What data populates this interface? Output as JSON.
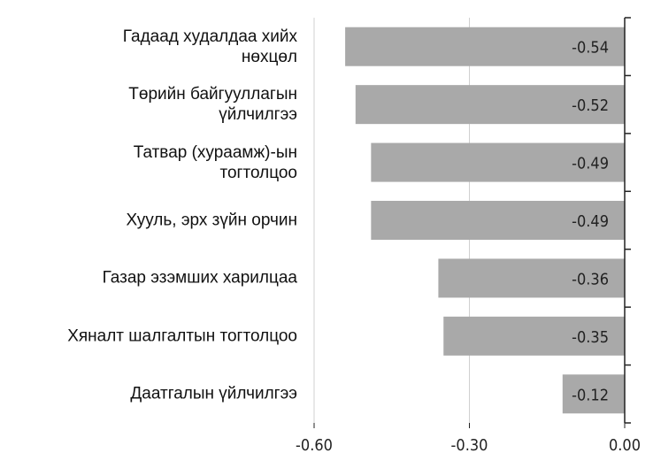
{
  "chart_data": {
    "type": "barh",
    "categories": [
      "Гадаад худалдаа хийх\nнөхцөл",
      "Төрийн байгууллагын\nүйлчилгээ",
      "Татвар (хураамж)-ын\nтогтолцоо",
      "Хууль, эрх зүйн орчин",
      "Газар эзэмших харилцаа",
      "Хяналт шалгалтын тогтолцоо",
      "Даатгалын үйлчилгээ"
    ],
    "values": [
      -0.54,
      -0.52,
      -0.49,
      -0.49,
      -0.36,
      -0.35,
      -0.12
    ],
    "color": "#a9a9a9",
    "xlim": [
      -0.6,
      0
    ],
    "xticks": [
      {
        "value": -0.6,
        "label": "-0.60"
      },
      {
        "value": -0.3,
        "label": "-0.30"
      },
      {
        "value": 0,
        "label": "0.00"
      }
    ],
    "grid": true
  }
}
